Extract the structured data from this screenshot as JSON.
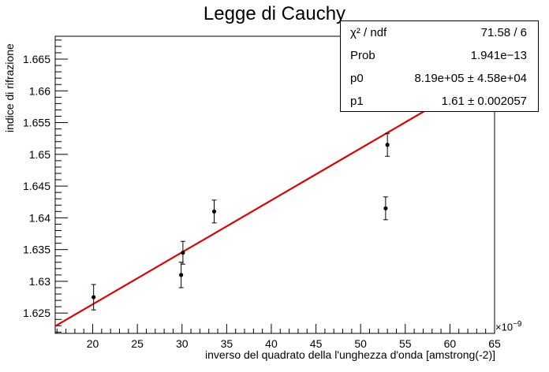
{
  "chart_data": {
    "type": "scatter",
    "title": "Legge di Cauchy",
    "xlabel": "inverso del quadrato della l'unghezza d'onda [amstrong(-2)]",
    "ylabel": "indice di rifrazione",
    "x_exponent_label": "×10",
    "x_exponent_power": "−9",
    "xlim": [
      15.8,
      65
    ],
    "ylim": [
      1.6218,
      1.6686
    ],
    "x_ticks": [
      20,
      25,
      30,
      35,
      40,
      45,
      50,
      55,
      60,
      65
    ],
    "y_ticks": [
      1.625,
      1.63,
      1.635,
      1.64,
      1.645,
      1.65,
      1.655,
      1.66,
      1.665
    ],
    "y_tick_labels": [
      "1.625",
      "1.63",
      "1.635",
      "1.64",
      "1.645",
      "1.65",
      "1.655",
      "1.66",
      "1.665"
    ],
    "points": [
      {
        "x": 20.1,
        "y": 1.6275,
        "err": 0.002
      },
      {
        "x": 29.9,
        "y": 1.631,
        "err": 0.002
      },
      {
        "x": 30.1,
        "y": 1.6345,
        "err": 0.0018
      },
      {
        "x": 33.6,
        "y": 1.641,
        "err": 0.0018
      },
      {
        "x": 52.8,
        "y": 1.6415,
        "err": 0.0018
      },
      {
        "x": 53.0,
        "y": 1.6515,
        "err": 0.0018
      }
    ],
    "fit": {
      "p0": 819000,
      "p1": 1.61,
      "color": "#e00000"
    },
    "marker_color": "#000000",
    "grid": false,
    "stats_box": {
      "placement": "top-right",
      "rows": [
        {
          "key": "χ² / ndf",
          "value": "71.58 / 6"
        },
        {
          "key": "Prob",
          "value": "1.941e−13"
        },
        {
          "key": "p0",
          "value": "8.19e+05 ± 4.58e+04"
        },
        {
          "key": "p1",
          "value": "1.61 ± 0.002057"
        }
      ]
    }
  }
}
